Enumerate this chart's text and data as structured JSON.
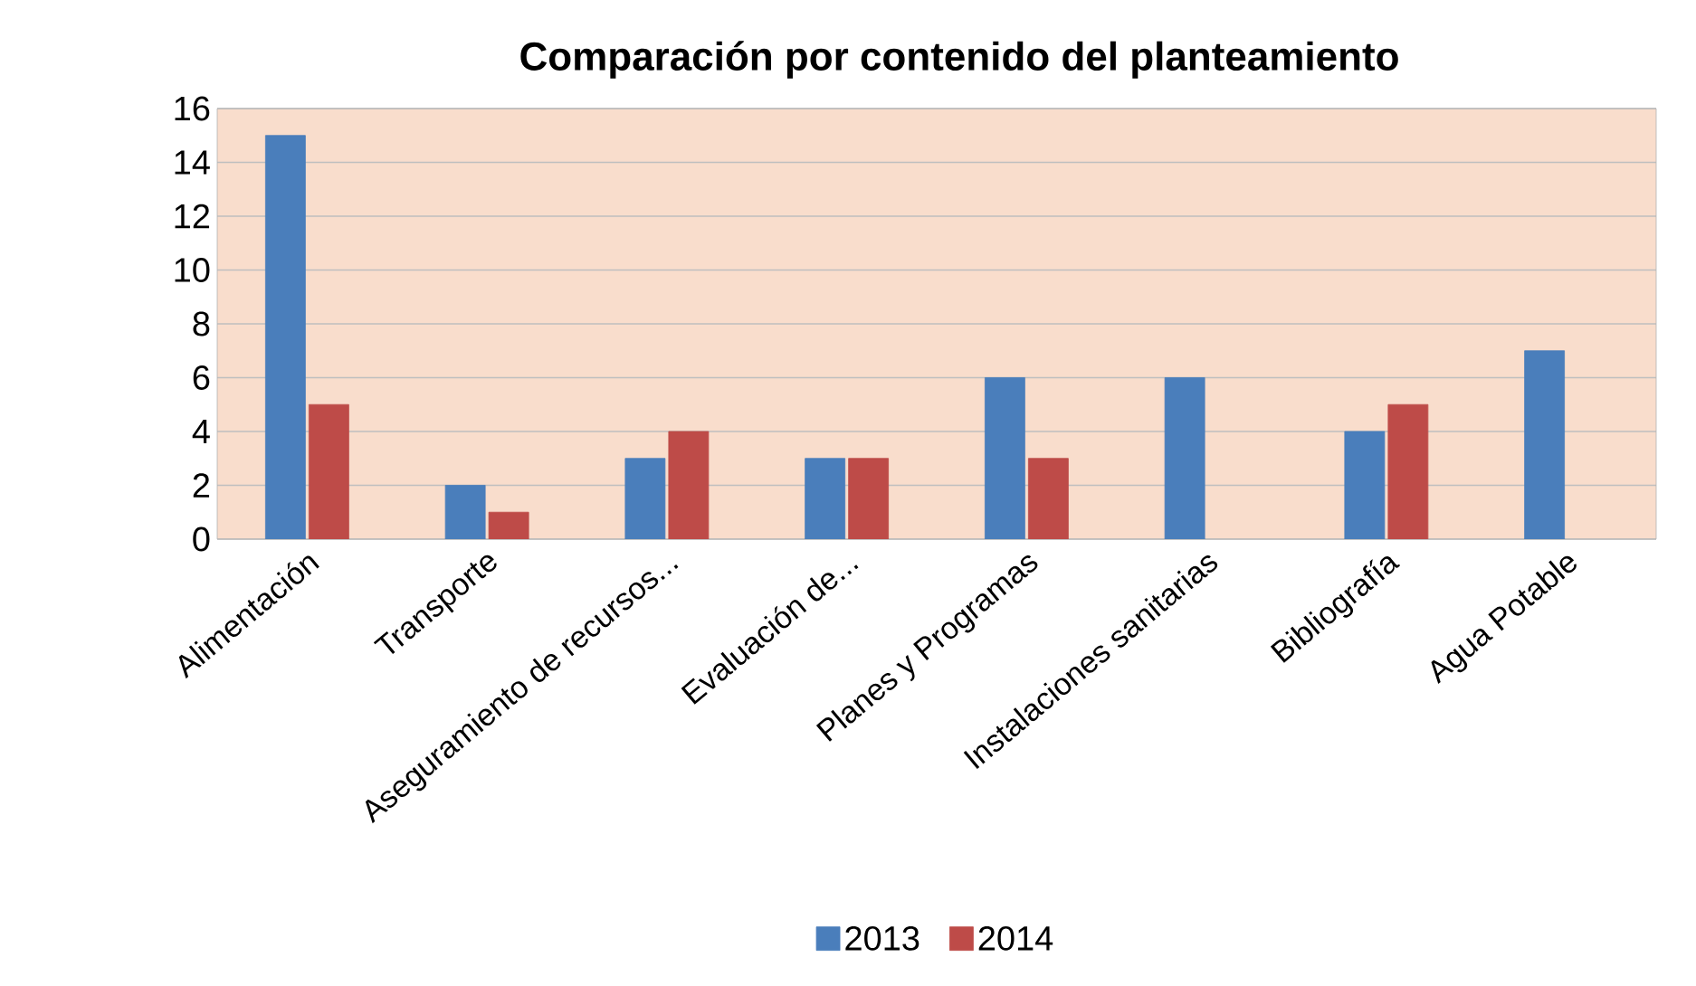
{
  "chart_data": {
    "type": "bar",
    "title": "Comparación por contenido del planteamiento",
    "categories": [
      "Alimentación",
      "Transporte",
      "Aseguramiento de recursos...",
      "Evaluación de...",
      "Planes y Programas",
      "Instalaciones sanitarias",
      "Bibliografía",
      "Agua Potable"
    ],
    "series": [
      {
        "name": "2013",
        "color": "#4a7ebb",
        "values": [
          15,
          2,
          3,
          3,
          6,
          6,
          4,
          7
        ]
      },
      {
        "name": "2014",
        "color": "#be4b48",
        "values": [
          5,
          1,
          4,
          3,
          3,
          null,
          5,
          null
        ]
      }
    ],
    "ylim": [
      0,
      16
    ],
    "yticks": [
      0,
      2,
      4,
      6,
      8,
      10,
      12,
      14,
      16
    ],
    "grid": "y",
    "legend": "bottom"
  }
}
